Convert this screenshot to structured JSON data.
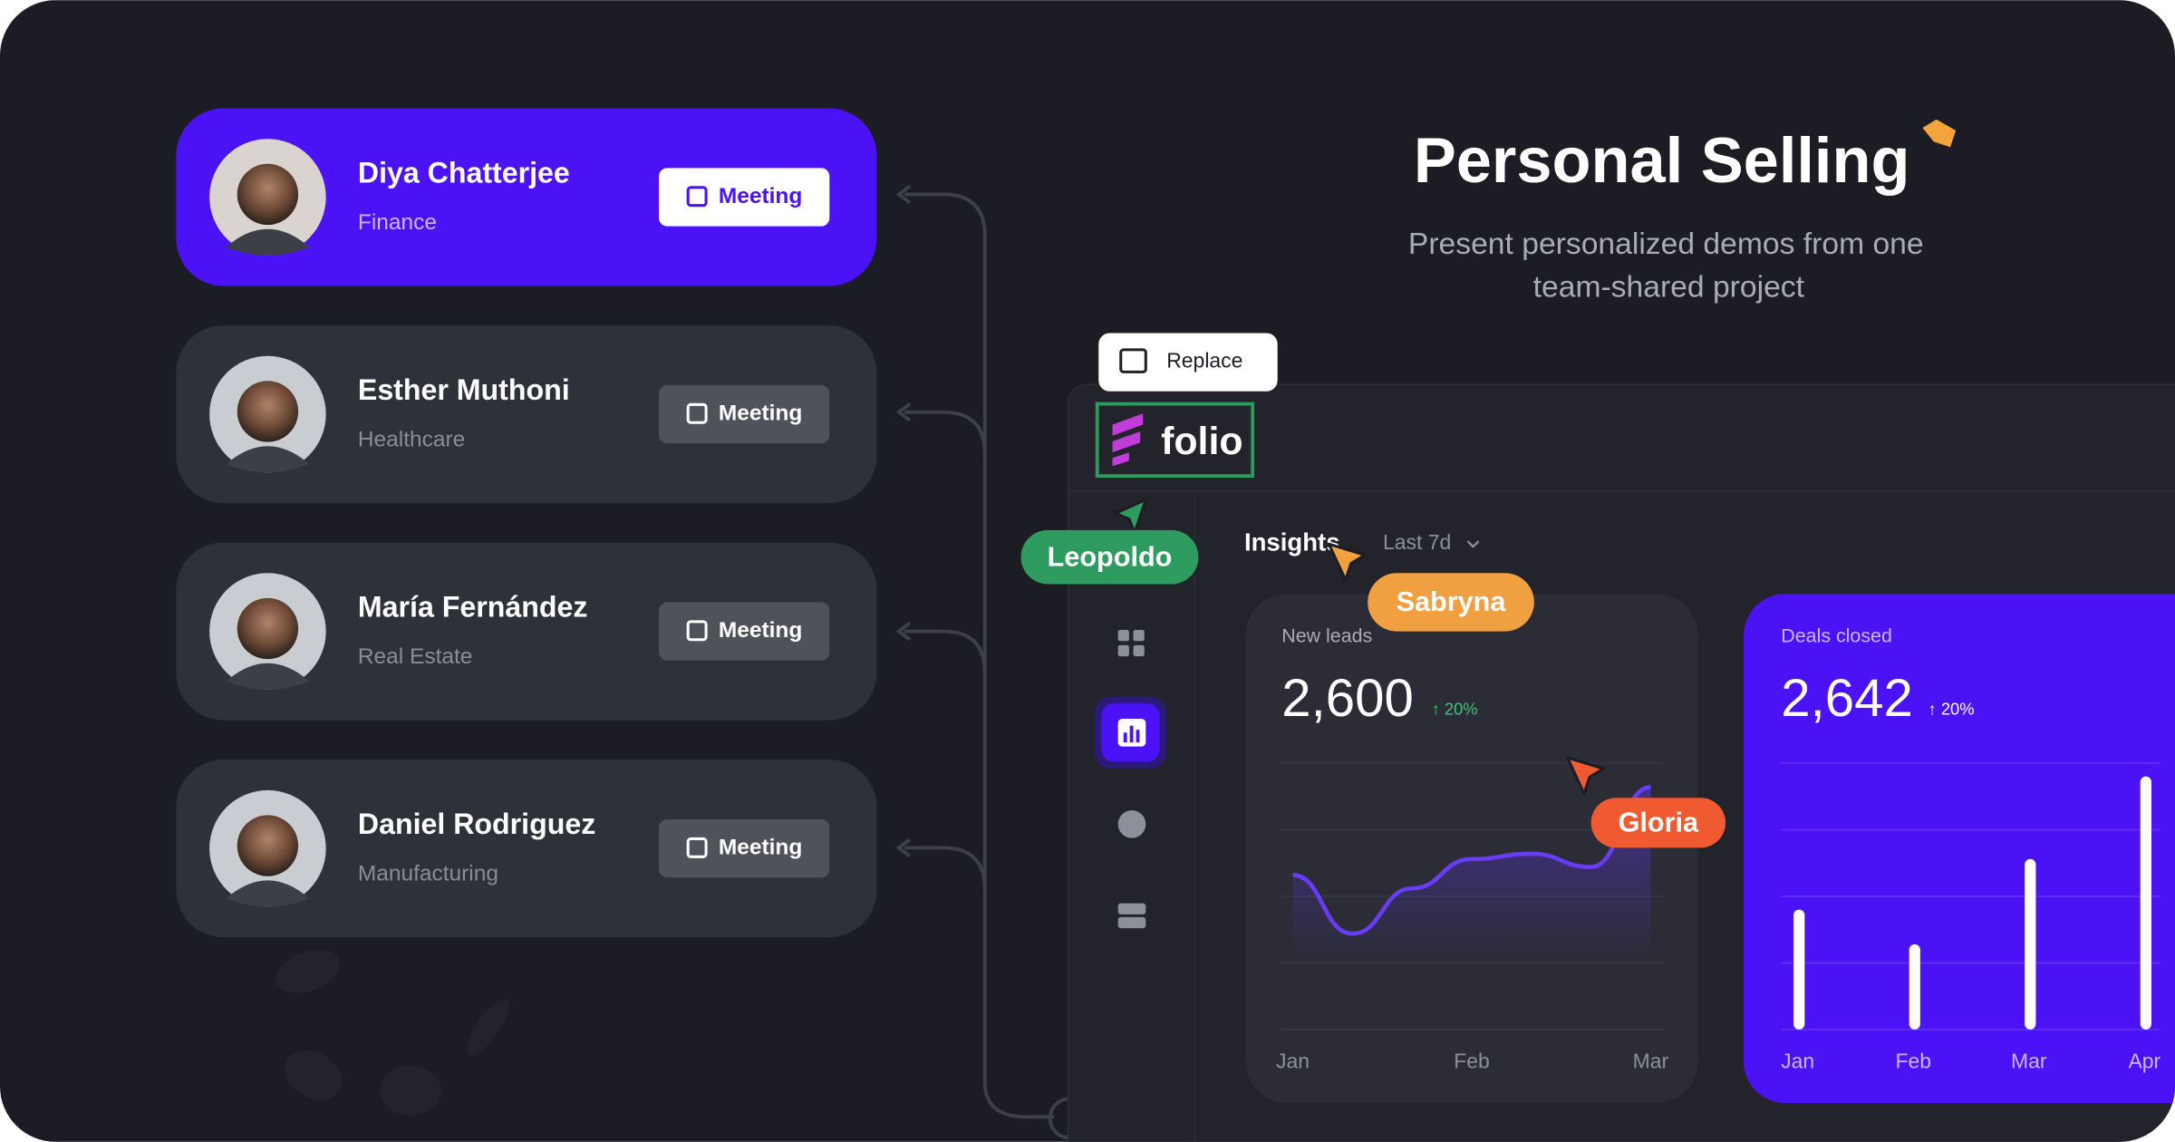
{
  "header": {
    "title": "Personal Selling",
    "subtitle": [
      "Present personalized demos from one",
      "team-shared project"
    ]
  },
  "contacts": [
    {
      "name": "Diya Chatterjee",
      "industry": "Finance",
      "button": "Meeting"
    },
    {
      "name": "Esther Muthoni",
      "industry": "Healthcare",
      "button": "Meeting"
    },
    {
      "name": "María Fernández",
      "industry": "Real Estate",
      "button": "Meeting"
    },
    {
      "name": "Daniel Rodriguez",
      "industry": "Manufacturing",
      "button": "Meeting"
    }
  ],
  "toolbar": {
    "replace": "Replace",
    "logo": "folio"
  },
  "cursors": [
    "Leopoldo",
    "Sabryna",
    "Gloria"
  ],
  "dashboard": {
    "section": "Insights",
    "range": "Last 7d"
  },
  "chart_data": [
    {
      "type": "area",
      "title": "New leads",
      "total": "2,600",
      "change": "↑ 20%",
      "categories": [
        "Jan",
        null,
        null,
        "Feb",
        null,
        null,
        "Mar"
      ],
      "values": [
        58,
        36,
        53,
        64,
        66,
        61,
        91
      ],
      "color": "#6a3cf5",
      "ylim": [
        0,
        100
      ],
      "yticks": [
        0,
        25,
        50,
        75,
        100
      ],
      "grid": true
    },
    {
      "type": "bar",
      "title": "Deals closed",
      "total": "2,642",
      "change": "↑ 20%",
      "categories": [
        "Jan",
        "Feb",
        "Mar",
        "Apr"
      ],
      "values": [
        45,
        32,
        64,
        95
      ],
      "color": "#ffffff",
      "ylim": [
        0,
        100
      ],
      "yticks": [
        0,
        25,
        50,
        75,
        100
      ],
      "grid": true
    }
  ]
}
